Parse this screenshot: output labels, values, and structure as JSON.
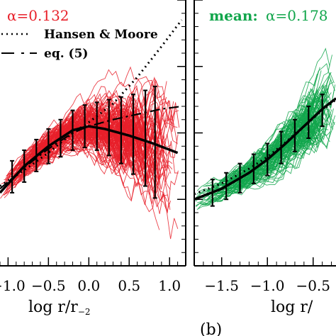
{
  "panel_a": {
    "alpha_label": "α=0.132",
    "legend": [
      {
        "label": "Hansen & Moore",
        "style": "dotted"
      },
      {
        "label": "eq. (5)",
        "style": "dash-dot"
      }
    ],
    "x_ticks": [
      "−1.0",
      "−0.5",
      "0.0",
      "0.5",
      "1.0"
    ],
    "xlabel_main": "log r/r",
    "xlabel_sub": "−2",
    "color": "#e8202a"
  },
  "panel_b": {
    "mean_label": "mean:",
    "alpha_label": "α=0.178",
    "x_ticks": [
      "−1.5",
      "−1.0",
      "−0.5"
    ],
    "xlabel_main": "log r/",
    "color": "#12a64c"
  },
  "caption": "(b)",
  "chart_data": [
    {
      "type": "line",
      "panel": "a",
      "xlim": [
        -1.1,
        1.2
      ],
      "x_ticks": [
        -1.0,
        -0.5,
        0.0,
        0.5,
        1.0
      ],
      "mean_curve": {
        "x": [
          -1.1,
          -0.8,
          -0.5,
          -0.2,
          0.0,
          0.2,
          0.5,
          0.8,
          1.1
        ],
        "y": [
          -0.45,
          -0.25,
          -0.1,
          0.02,
          0.05,
          0.03,
          -0.02,
          -0.08,
          -0.15
        ]
      },
      "hansen_moore": {
        "x": [
          -1.1,
          -0.8,
          -0.5,
          -0.2,
          0.0,
          0.3,
          0.6,
          0.9,
          1.15
        ],
        "y": [
          -0.4,
          -0.28,
          -0.15,
          0.0,
          0.08,
          0.22,
          0.42,
          0.65,
          0.85
        ]
      },
      "eq5": {
        "x": [
          -1.1,
          -0.8,
          -0.5,
          -0.2,
          0.0,
          0.3,
          0.6,
          0.9,
          1.15
        ],
        "y": [
          -0.42,
          -0.26,
          -0.12,
          0.0,
          0.05,
          0.1,
          0.14,
          0.18,
          0.2
        ]
      },
      "error_bars": [
        {
          "x": -0.95,
          "y": -0.33,
          "err": 0.12
        },
        {
          "x": -0.8,
          "y": -0.25,
          "err": 0.12
        },
        {
          "x": -0.65,
          "y": -0.17,
          "err": 0.12
        },
        {
          "x": -0.5,
          "y": -0.1,
          "err": 0.13
        },
        {
          "x": -0.35,
          "y": -0.04,
          "err": 0.14
        },
        {
          "x": -0.2,
          "y": 0.02,
          "err": 0.15
        },
        {
          "x": -0.05,
          "y": 0.05,
          "err": 0.16
        },
        {
          "x": 0.1,
          "y": 0.05,
          "err": 0.18
        },
        {
          "x": 0.25,
          "y": 0.04,
          "err": 0.21
        },
        {
          "x": 0.4,
          "y": 0.02,
          "err": 0.25
        },
        {
          "x": 0.55,
          "y": -0.01,
          "err": 0.3
        },
        {
          "x": 0.7,
          "y": -0.04,
          "err": 0.36
        },
        {
          "x": 0.82,
          "y": -0.07,
          "err": 0.42
        }
      ]
    },
    {
      "type": "line",
      "panel": "b",
      "xlim": [
        -1.8,
        -0.25
      ],
      "x_ticks": [
        -1.5,
        -1.0,
        -0.5
      ],
      "mean_curve": {
        "x": [
          -1.8,
          -1.5,
          -1.2,
          -1.0,
          -0.8,
          -0.6,
          -0.4,
          -0.25
        ],
        "y": [
          -0.5,
          -0.42,
          -0.3,
          -0.2,
          -0.08,
          0.05,
          0.18,
          0.26
        ]
      },
      "hansen_moore": {
        "x": [
          -1.8,
          -1.5,
          -1.2,
          -1.0,
          -0.8,
          -0.6,
          -0.4,
          -0.25
        ],
        "y": [
          -0.46,
          -0.38,
          -0.27,
          -0.18,
          -0.07,
          0.05,
          0.17,
          0.25
        ]
      },
      "error_bars": [
        {
          "x": -1.6,
          "y": -0.45,
          "err": 0.1
        },
        {
          "x": -1.45,
          "y": -0.4,
          "err": 0.1
        },
        {
          "x": -1.3,
          "y": -0.34,
          "err": 0.11
        },
        {
          "x": -1.15,
          "y": -0.27,
          "err": 0.11
        },
        {
          "x": -1.0,
          "y": -0.2,
          "err": 0.12
        },
        {
          "x": -0.85,
          "y": -0.11,
          "err": 0.12
        },
        {
          "x": -0.7,
          "y": -0.02,
          "err": 0.12
        },
        {
          "x": -0.55,
          "y": 0.08,
          "err": 0.12
        },
        {
          "x": -0.4,
          "y": 0.17,
          "err": 0.12
        }
      ]
    }
  ]
}
